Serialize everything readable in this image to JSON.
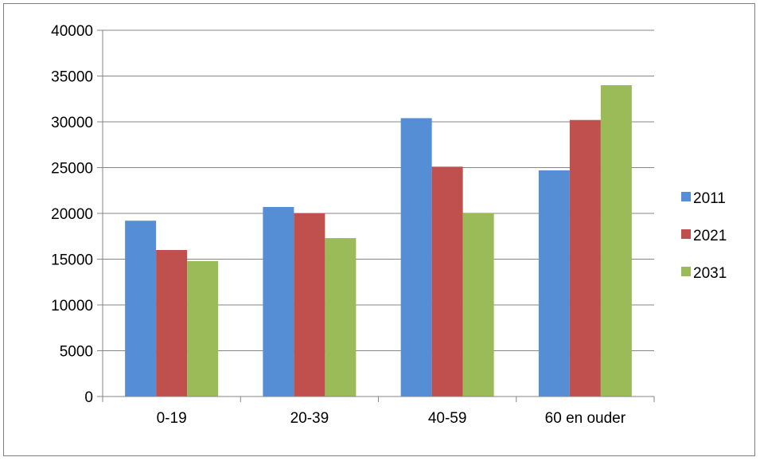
{
  "chart_data": {
    "type": "bar",
    "title": "",
    "xlabel": "",
    "ylabel": "",
    "categories": [
      "0-19",
      "20-39",
      "40-59",
      "60 en ouder"
    ],
    "series": [
      {
        "name": "2011",
        "values": [
          19200,
          20700,
          30400,
          24700
        ],
        "color": "#558ED5"
      },
      {
        "name": "2021",
        "values": [
          16000,
          20000,
          25100,
          30200
        ],
        "color": "#C0504D"
      },
      {
        "name": "2031",
        "values": [
          14800,
          17300,
          20000,
          34000
        ],
        "color": "#9BBB59"
      }
    ],
    "ylim": [
      0,
      40000
    ],
    "yticks": [
      "0",
      "5000",
      "10000",
      "15000",
      "20000",
      "25000",
      "30000",
      "35000",
      "40000"
    ],
    "grid": true,
    "legend_position": "right"
  }
}
